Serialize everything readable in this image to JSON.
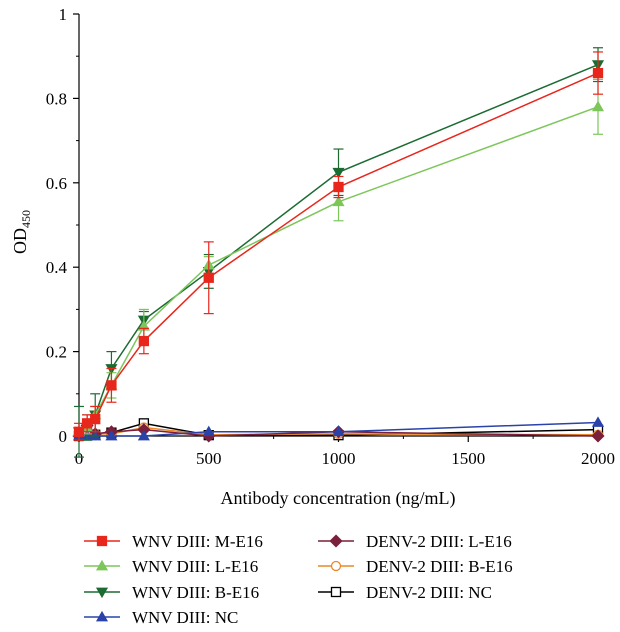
{
  "chart_data": {
    "type": "line",
    "xlabel": "Antibody concentration (ng/mL)",
    "ylabel": {
      "main": "OD",
      "sub": "450"
    },
    "xlim": [
      0,
      2000
    ],
    "ylim": [
      0,
      1
    ],
    "xticks": [
      0,
      500,
      1000,
      1500,
      2000
    ],
    "yticks": [
      0,
      0.2,
      0.4,
      0.6,
      0.8,
      1
    ],
    "yticklabels": [
      "0",
      "0.2",
      "0.4",
      "0.6",
      "0.8",
      "1"
    ],
    "grid": false,
    "legend_position": "bottom",
    "x": [
      0,
      31.25,
      62.5,
      125,
      250,
      500,
      1000,
      2000
    ],
    "series": [
      {
        "name": "WNV DIII: M-E16",
        "color": "#e8261c",
        "marker": "square",
        "filled": true,
        "values": [
          0.01,
          0.03,
          0.04,
          0.12,
          0.225,
          0.375,
          0.59,
          0.86
        ],
        "errors": [
          0.02,
          0.02,
          0.03,
          0.04,
          0.03,
          0.085,
          0.025,
          0.05
        ]
      },
      {
        "name": "WNV DIII: L-E16",
        "color": "#7cc65a",
        "marker": "triangle-up",
        "filled": true,
        "values": [
          0.01,
          0.02,
          0.05,
          0.12,
          0.26,
          0.405,
          0.555,
          0.78
        ],
        "errors": [
          0.01,
          0.015,
          0.02,
          0.03,
          0.04,
          0.02,
          0.045,
          0.065
        ]
      },
      {
        "name": "WNV DIII: B-E16",
        "color": "#1b6b32",
        "marker": "triangle-down",
        "filled": true,
        "values": [
          0.01,
          0.02,
          0.05,
          0.16,
          0.275,
          0.39,
          0.625,
          0.88
        ],
        "errors": [
          0.06,
          0.03,
          0.05,
          0.04,
          0.02,
          0.04,
          0.055,
          0.04
        ]
      },
      {
        "name": "WNV DIII: NC",
        "color": "#2a43a8",
        "marker": "triangle-up",
        "filled": true,
        "values": [
          0.0,
          0.0,
          0.0,
          0.0,
          0.0,
          0.01,
          0.01,
          0.032
        ],
        "errors": [
          0,
          0,
          0,
          0,
          0,
          0,
          0,
          0
        ]
      },
      {
        "name": "DENV-2 DIII: L-E16",
        "color": "#7a1f3c",
        "marker": "diamond",
        "filled": true,
        "values": [
          0.0,
          0.025,
          0.005,
          0.01,
          0.015,
          0.0,
          0.01,
          0.0
        ],
        "errors": [
          0,
          0,
          0,
          0,
          0,
          0,
          0,
          0
        ]
      },
      {
        "name": "DENV-2 DIII: B-E16",
        "color": "#e8882a",
        "marker": "circle",
        "filled": false,
        "values": [
          0.0,
          0.01,
          0.005,
          0.005,
          0.02,
          0.003,
          0.005,
          0.003
        ],
        "errors": [
          0,
          0,
          0,
          0,
          0,
          0,
          0,
          0
        ]
      },
      {
        "name": "DENV-2 DIII: NC",
        "color": "#000000",
        "marker": "square",
        "filled": false,
        "values": [
          0.0,
          0.005,
          0.003,
          0.008,
          0.03,
          0.002,
          0.002,
          0.015
        ],
        "errors": [
          0,
          0,
          0,
          0,
          0,
          0.002,
          0,
          0
        ]
      }
    ]
  }
}
